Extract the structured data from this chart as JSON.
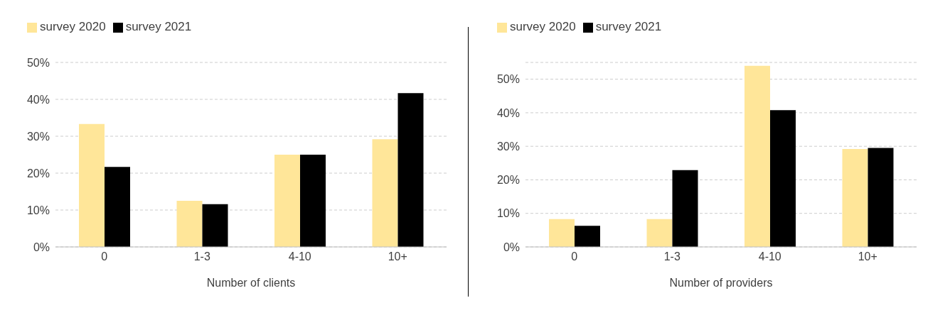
{
  "chart_data": [
    {
      "type": "bar",
      "xlabel": "Number of clients",
      "categories": [
        "0",
        "1-3",
        "4-10",
        "10+"
      ],
      "series": [
        {
          "name": "survey 2020",
          "color": "#ffe699",
          "values": [
            33.3,
            12.5,
            25,
            29.2
          ]
        },
        {
          "name": "survey 2021",
          "color": "#000000",
          "values": [
            21.7,
            11.6,
            25,
            41.7
          ]
        }
      ],
      "ylim": [
        0,
        50
      ],
      "yticks": [
        {
          "value": 0,
          "label": "0%"
        },
        {
          "value": 10,
          "label": "10%"
        },
        {
          "value": 20,
          "label": "20%"
        },
        {
          "value": 30,
          "label": "30%"
        },
        {
          "value": 40,
          "label": "40%"
        },
        {
          "value": 50,
          "label": "50%"
        }
      ],
      "grid": "y",
      "legend": "top left"
    },
    {
      "type": "bar",
      "xlabel": "Number of providers",
      "categories": [
        "0",
        "1-3",
        "4-10",
        "10+"
      ],
      "series": [
        {
          "name": "survey 2020",
          "color": "#ffe699",
          "values": [
            8.3,
            8.3,
            54,
            29.2
          ]
        },
        {
          "name": "survey 2021",
          "color": "#000000",
          "values": [
            6.3,
            22.9,
            40.8,
            29.5
          ]
        }
      ],
      "ylim": [
        0,
        55
      ],
      "yticks": [
        {
          "value": 0,
          "label": "0%"
        },
        {
          "value": 10,
          "label": "10%"
        },
        {
          "value": 20,
          "label": "20%"
        },
        {
          "value": 30,
          "label": "30%"
        },
        {
          "value": 40,
          "label": "40%"
        },
        {
          "value": 50,
          "label": "50%"
        }
      ],
      "grid": "y",
      "legend": "top left"
    }
  ]
}
